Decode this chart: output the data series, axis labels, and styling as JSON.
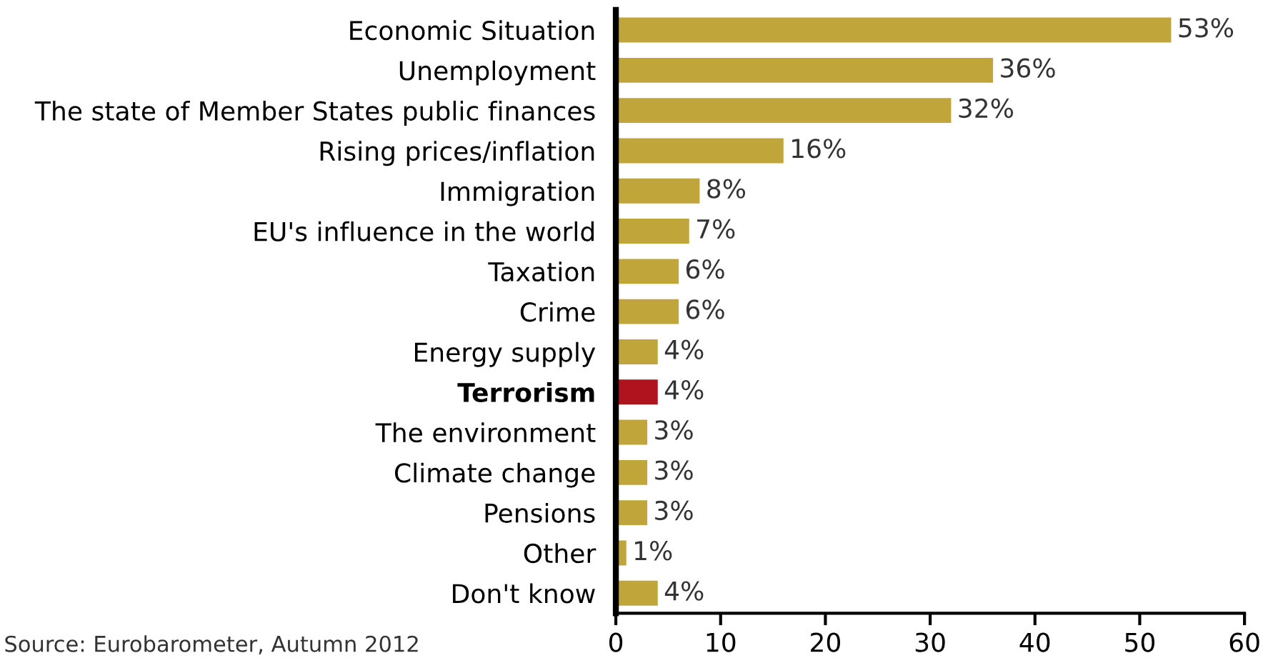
{
  "chart_data": {
    "type": "bar",
    "orientation": "horizontal",
    "categories": [
      "Economic Situation",
      "Unemployment",
      "The state of Member States public finances",
      "Rising prices/inflation",
      "Immigration",
      "EU's influence in the world",
      "Taxation",
      "Crime",
      "Energy supply",
      "Terrorism",
      "The environment",
      "Climate change",
      "Pensions",
      "Other",
      "Don't know"
    ],
    "values": [
      53,
      36,
      32,
      16,
      8,
      7,
      6,
      6,
      4,
      4,
      3,
      3,
      3,
      1,
      4
    ],
    "value_labels": [
      "53%",
      "36%",
      "32%",
      "16%",
      "8%",
      "7%",
      "6%",
      "6%",
      "4%",
      "4%",
      "3%",
      "3%",
      "3%",
      "1%",
      "4%"
    ],
    "colors": [
      "#bfa53a",
      "#bfa53a",
      "#bfa53a",
      "#bfa53a",
      "#bfa53a",
      "#bfa53a",
      "#bfa53a",
      "#bfa53a",
      "#bfa53a",
      "#b0131e",
      "#bfa53a",
      "#bfa53a",
      "#bfa53a",
      "#bfa53a",
      "#bfa53a"
    ],
    "xlim": [
      0,
      60
    ],
    "xticks": [
      0,
      10,
      20,
      30,
      40,
      50,
      60
    ],
    "grid": false,
    "annotations": [
      "Source: Eurobarometer, Autumn 2012"
    ]
  }
}
